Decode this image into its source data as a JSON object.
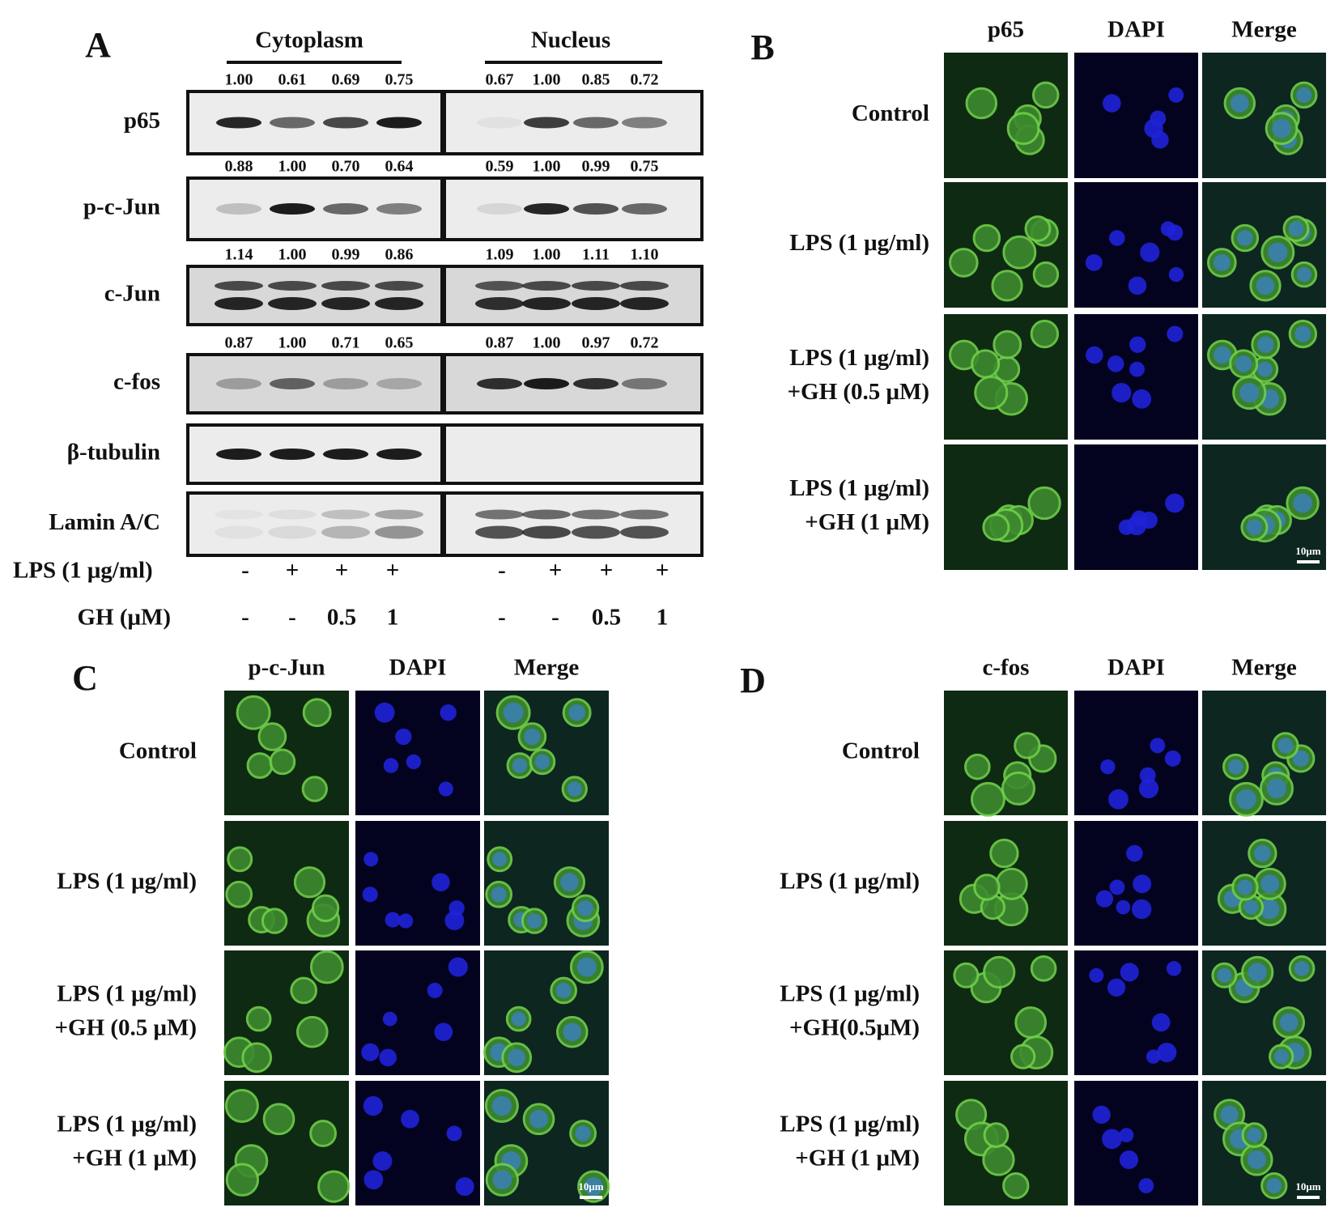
{
  "panel_a": {
    "label": "A",
    "fractions": [
      "Cytoplasm",
      "Nucleus"
    ],
    "blots": [
      {
        "protein": "p65",
        "cytoplasm": [
          "1.00",
          "0.61",
          "0.69",
          "0.75"
        ],
        "nucleus": [
          "0.67",
          "1.00",
          "0.85",
          "0.72"
        ]
      },
      {
        "protein": "p-c-Jun",
        "cytoplasm": [
          "0.88",
          "1.00",
          "0.70",
          "0.64"
        ],
        "nucleus": [
          "0.59",
          "1.00",
          "0.99",
          "0.75"
        ]
      },
      {
        "protein": "c-Jun",
        "cytoplasm": [
          "1.14",
          "1.00",
          "0.99",
          "0.86"
        ],
        "nucleus": [
          "1.09",
          "1.00",
          "1.11",
          "1.10"
        ]
      },
      {
        "protein": "c-fos",
        "cytoplasm": [
          "0.87",
          "1.00",
          "0.71",
          "0.65"
        ],
        "nucleus": [
          "0.87",
          "1.00",
          "0.97",
          "0.72"
        ]
      },
      {
        "protein": "β-tubulin"
      },
      {
        "protein": "Lamin A/C"
      }
    ],
    "treatments": [
      {
        "name": "LPS (1 μg/ml)",
        "cytoplasm": [
          "-",
          "+",
          "+",
          "+"
        ],
        "nucleus": [
          "-",
          "+",
          "+",
          "+"
        ]
      },
      {
        "name": "GH (μM)",
        "cytoplasm": [
          "-",
          "-",
          "0.5",
          "1"
        ],
        "nucleus": [
          "-",
          "-",
          "0.5",
          "1"
        ]
      }
    ]
  },
  "panel_b": {
    "label": "B",
    "columns": [
      "p65",
      "DAPI",
      "Merge"
    ],
    "rows": [
      [
        "Control"
      ],
      [
        "LPS (1 μg/ml)"
      ],
      [
        "LPS (1 μg/ml)",
        "+GH (0.5 μM)"
      ],
      [
        "LPS (1 μg/ml)",
        "+GH (1 μM)"
      ]
    ],
    "scale_bar": "10μm"
  },
  "panel_c": {
    "label": "C",
    "columns": [
      "p-c-Jun",
      "DAPI",
      "Merge"
    ],
    "rows": [
      [
        "Control"
      ],
      [
        "LPS (1 μg/ml)"
      ],
      [
        "LPS (1 μg/ml)",
        "+GH (0.5 μM)"
      ],
      [
        "LPS (1 μg/ml)",
        "+GH (1 μM)"
      ]
    ],
    "scale_bar": "10μm"
  },
  "panel_d": {
    "label": "D",
    "columns": [
      "c-fos",
      "DAPI",
      "Merge"
    ],
    "rows": [
      [
        "Control"
      ],
      [
        "LPS (1 μg/ml)"
      ],
      [
        "LPS (1 μg/ml)",
        "+GH(0.5μM)"
      ],
      [
        "LPS (1 μg/ml)",
        "+GH (1 μM)"
      ]
    ],
    "scale_bar": "10μm"
  }
}
